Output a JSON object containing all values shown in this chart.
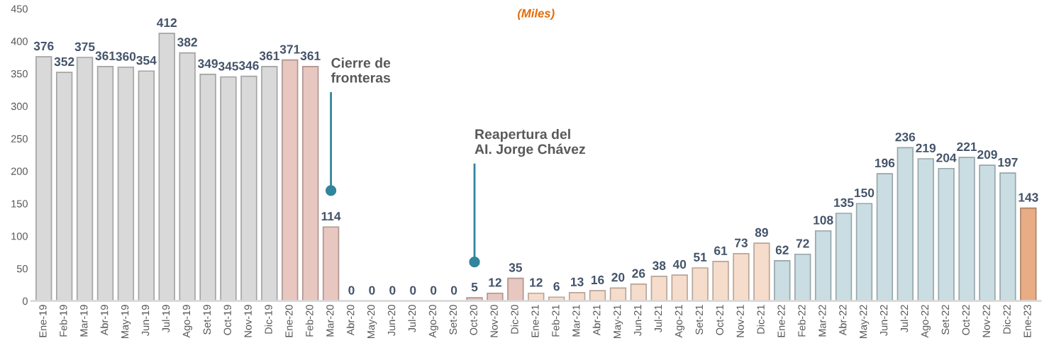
{
  "chart_data": {
    "type": "bar",
    "title": "(Miles)",
    "categories": [
      "Ene-19",
      "Feb-19",
      "Mar-19",
      "Abr-19",
      "May-19",
      "Jun-19",
      "Jul-19",
      "Ago-19",
      "Set-19",
      "Oct-19",
      "Nov-19",
      "Dic-19",
      "Ene-20",
      "Feb-20",
      "Mar-20",
      "Abr-20",
      "May-20",
      "Jun-20",
      "Jul-20",
      "Ago-20",
      "Set-20",
      "Oct-20",
      "Nov-20",
      "Dic-20",
      "Ene-21",
      "Feb-21",
      "Mar-21",
      "Abr-21",
      "May-21",
      "Jun-21",
      "Jul-21",
      "Ago-21",
      "Set-21",
      "Oct-21",
      "Nov-21",
      "Dic-21",
      "Ene-22",
      "Feb-22",
      "Mar-22",
      "Abr-22",
      "May-22",
      "Jun-22",
      "Jul-22",
      "Ago-22",
      "Set-22",
      "Oct-22",
      "Nov-22",
      "Dic-22",
      "Ene-23"
    ],
    "values": [
      376,
      352,
      375,
      361,
      360,
      354,
      412,
      382,
      349,
      345,
      346,
      361,
      371,
      361,
      114,
      0,
      0,
      0,
      0,
      0,
      0,
      5,
      12,
      35,
      12,
      6,
      13,
      16,
      20,
      26,
      38,
      40,
      51,
      61,
      73,
      89,
      62,
      72,
      108,
      135,
      150,
      196,
      236,
      219,
      204,
      221,
      209,
      197,
      143
    ],
    "colors": [
      "#d9d9d9",
      "#d9d9d9",
      "#d9d9d9",
      "#d9d9d9",
      "#d9d9d9",
      "#d9d9d9",
      "#d9d9d9",
      "#d9d9d9",
      "#d9d9d9",
      "#d9d9d9",
      "#d9d9d9",
      "#d9d9d9",
      "#e8c7c0",
      "#e8c7c0",
      "#e8c7c0",
      "#e8c7c0",
      "#e8c7c0",
      "#e8c7c0",
      "#e8c7c0",
      "#e8c7c0",
      "#e8c7c0",
      "#e8c7c0",
      "#e8c7c0",
      "#e8c7c0",
      "#f6dccb",
      "#f6dccb",
      "#f6dccb",
      "#f6dccb",
      "#f6dccb",
      "#f6dccb",
      "#f6dccb",
      "#f6dccb",
      "#f6dccb",
      "#f6dccb",
      "#f6dccb",
      "#f6dccb",
      "#c9dde2",
      "#c9dde2",
      "#c9dde2",
      "#c9dde2",
      "#c9dde2",
      "#c9dde2",
      "#c9dde2",
      "#c9dde2",
      "#c9dde2",
      "#c9dde2",
      "#c9dde2",
      "#c9dde2",
      "#e8ad85"
    ],
    "ylim": [
      0,
      450
    ],
    "yticks": [
      0,
      50,
      100,
      150,
      200,
      250,
      300,
      350,
      400,
      450
    ],
    "data_labels": true,
    "grid": false,
    "legend": false,
    "annotations": [
      {
        "text": "Cierre de\nfronteras",
        "x": "Mar-20",
        "y": 170
      },
      {
        "text": "Reapertura del\nAI. Jorge Chávez",
        "x": "Oct-20",
        "y": 60
      }
    ]
  }
}
